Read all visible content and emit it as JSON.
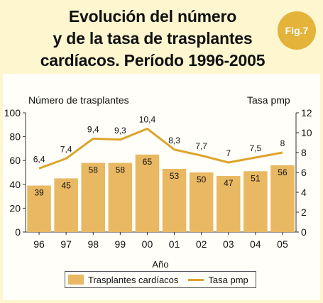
{
  "header": {
    "title_line1": "Evolución del número",
    "title_line2": "y de la tasa de trasplantes",
    "title_line3": "cardíacos. Período 1996-2005",
    "badge": "Fig.7"
  },
  "colors": {
    "background": "#fdf6cf",
    "bar": "#e9b862",
    "line": "#dca42c",
    "badge": "#e3b33a"
  },
  "chart_data": {
    "type": "bar",
    "categories": [
      "96",
      "97",
      "98",
      "99",
      "00",
      "01",
      "02",
      "03",
      "04",
      "05"
    ],
    "series": [
      {
        "name": "Trasplantes cardíacos",
        "type": "bar",
        "axis": "left",
        "values": [
          39,
          45,
          58,
          58,
          65,
          53,
          50,
          47,
          51,
          56
        ]
      },
      {
        "name": "Tasa pmp",
        "type": "line",
        "axis": "right",
        "values": [
          6.4,
          7.4,
          9.4,
          9.3,
          10.4,
          8.3,
          7.7,
          7.0,
          7.5,
          8.0
        ],
        "labels": [
          "6,4",
          "7,4",
          "9,4",
          "9,3",
          "10,4",
          "8,3",
          "7,7",
          "7",
          "7,5",
          "8"
        ]
      }
    ],
    "ylabel_left": "Número de trasplantes",
    "ylabel_right": "Tasa pmp",
    "xlabel": "Año",
    "ylim_left": [
      0,
      100
    ],
    "yticks_left": [
      0,
      20,
      40,
      60,
      80,
      100
    ],
    "ylim_right": [
      0,
      12
    ],
    "yticks_right": [
      0,
      2,
      4,
      6,
      8,
      10,
      12
    ],
    "grid": false,
    "legend_position": "bottom-center"
  }
}
